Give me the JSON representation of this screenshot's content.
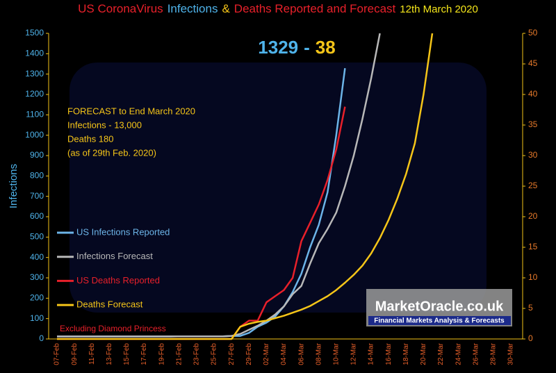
{
  "chart_data": {
    "type": "line",
    "title_parts": [
      {
        "text": "US CoronaVirus",
        "color": "#e8202a"
      },
      {
        "text": "Infections",
        "color": "#4fb3ea"
      },
      {
        "text": "&",
        "color": "#f5c518"
      },
      {
        "text": "Deaths Reported and Forecast",
        "color": "#e8202a"
      },
      {
        "text": "12th  March 2020",
        "color": "#f5e61a"
      }
    ],
    "headline": [
      {
        "text": "1329",
        "color": "#4fb3ea"
      },
      {
        "text": "-",
        "color": "#4fb3ea"
      },
      {
        "text": "38",
        "color": "#f5c518"
      }
    ],
    "forecast_note": [
      "FORECAST to End March 2020",
      "Infections - 13,000",
      "Deaths 180",
      "(as of  29th Feb. 2020)"
    ],
    "footnote": "Excluding Diamond Princess",
    "watermark": "MarketOracle.co.uk",
    "watermark_tagline": "Financial Markets Analysis & Forecasts",
    "y_label": "Infections",
    "categories": [
      "07-Feb",
      null,
      "09-Feb",
      null,
      "11-Feb",
      null,
      "13-Feb",
      null,
      "15-Feb",
      null,
      "17-Feb",
      null,
      "19-Feb",
      null,
      "21-Feb",
      null,
      "23-Feb",
      null,
      "25-Feb",
      null,
      "27-Feb",
      null,
      "29-Feb",
      null,
      "02-Mar",
      null,
      "04-Mar",
      null,
      "06-Mar",
      null,
      "08-Mar",
      null,
      "10-Mar",
      null,
      "12-Mar",
      null,
      "14-Mar",
      null,
      "16-Mar",
      null,
      "18-Mar",
      null,
      "20-Mar",
      null,
      "22-Mar",
      null,
      "24-Mar",
      null,
      "26-Mar",
      null,
      "28-Mar",
      null,
      "30-Mar"
    ],
    "series": [
      {
        "name": "US Infections Reported",
        "color": "#6cb4e8",
        "axis": "y",
        "values": [
          12,
          12,
          12,
          12,
          12,
          12,
          12,
          12,
          12,
          12,
          12,
          12,
          12,
          12,
          13,
          13,
          13,
          13,
          13,
          13,
          15,
          15,
          30,
          60,
          80,
          110,
          160,
          230,
          320,
          450,
          560,
          720,
          1000,
          1329,
          null,
          null,
          null,
          null,
          null,
          null,
          null,
          null,
          null,
          null,
          null,
          null,
          null,
          null,
          null,
          null,
          null,
          null,
          null
        ]
      },
      {
        "name": "Infections Forecast",
        "color": "#b8b8b8",
        "axis": "y",
        "values": [
          13,
          13,
          13,
          13,
          13,
          13,
          13,
          13,
          13,
          13,
          13,
          13,
          13,
          13,
          13,
          13,
          13,
          13,
          13,
          13,
          15,
          25,
          45,
          65,
          90,
          120,
          160,
          220,
          260,
          370,
          470,
          540,
          620,
          750,
          900,
          1080,
          1280,
          1500,
          null,
          null,
          null,
          null,
          null,
          null,
          null,
          null,
          null,
          null,
          null,
          null,
          null,
          null,
          null
        ]
      },
      {
        "name": "US Deaths Reported",
        "color": "#e8202a",
        "axis": "y2",
        "values": [
          0,
          0,
          0,
          0,
          0,
          0,
          0,
          0,
          0,
          0,
          0,
          0,
          0,
          0,
          0,
          0,
          0,
          0,
          0,
          0,
          0,
          2,
          3,
          3,
          6,
          7,
          8,
          10,
          16,
          19,
          22,
          26,
          31,
          38,
          null,
          null,
          null,
          null,
          null,
          null,
          null,
          null,
          null,
          null,
          null,
          null,
          null,
          null,
          null,
          null,
          null,
          null,
          null
        ]
      },
      {
        "name": "Deaths Forecast",
        "color": "#f5c518",
        "axis": "y2",
        "values": [
          0,
          0,
          0,
          0,
          0,
          0,
          0,
          0,
          0,
          0,
          0,
          0,
          0,
          0,
          0,
          0,
          0,
          0,
          0,
          0,
          0,
          2,
          2.5,
          2.8,
          3,
          3.4,
          3.8,
          4.3,
          4.8,
          5.4,
          6.2,
          7,
          8,
          9.2,
          10.5,
          12,
          14,
          16.5,
          19.5,
          23,
          27,
          32,
          40,
          50,
          null,
          null,
          null,
          null,
          null,
          null,
          null,
          null,
          null
        ]
      }
    ],
    "ylim": [
      0,
      1500
    ],
    "yticks": [
      0,
      100,
      200,
      300,
      400,
      500,
      600,
      700,
      800,
      900,
      1000,
      1100,
      1200,
      1300,
      1400,
      1500
    ],
    "y2lim": [
      0,
      50
    ],
    "y2ticks": [
      0,
      5,
      10,
      15,
      20,
      25,
      30,
      35,
      40,
      45,
      50
    ],
    "grid": false
  }
}
